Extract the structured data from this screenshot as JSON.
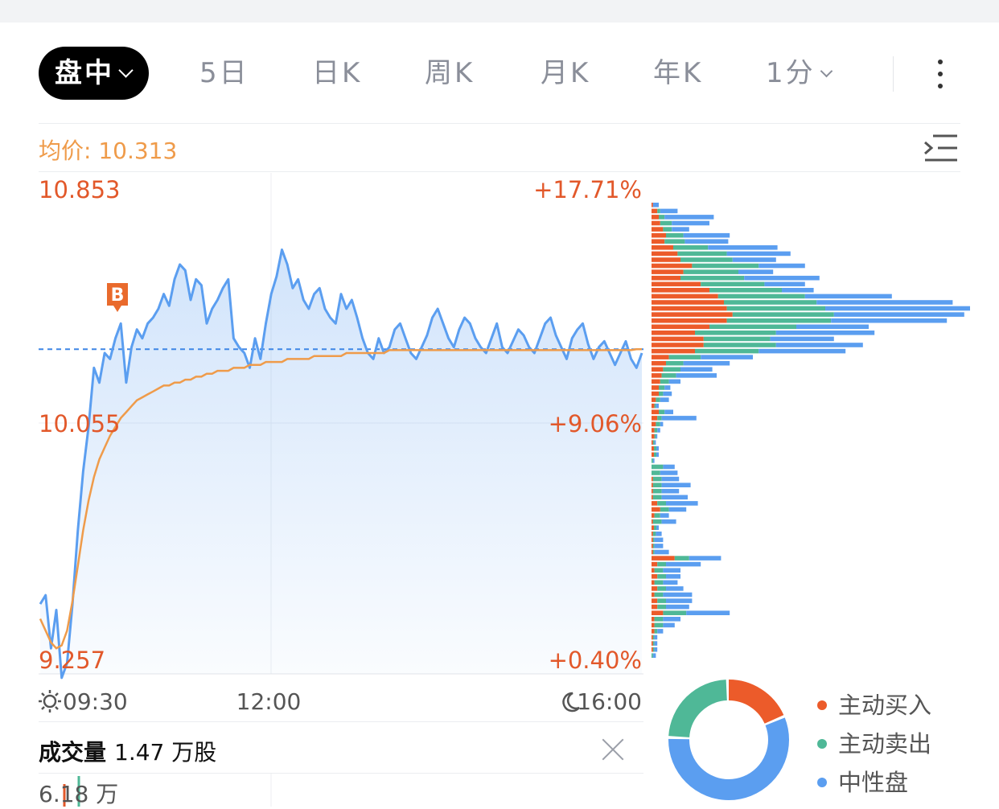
{
  "tabs": [
    {
      "label": "盘中",
      "active": true,
      "dropdown": true
    },
    {
      "label": "5日"
    },
    {
      "label": "日K"
    },
    {
      "label": "周K"
    },
    {
      "label": "月K"
    },
    {
      "label": "年K"
    },
    {
      "label": "1分",
      "dropdown": true
    }
  ],
  "icons": {
    "more": "more-vertical-icon",
    "settings": "list-settings-icon",
    "sun": "sun-icon",
    "moon": "moon-icon",
    "close": "close-icon"
  },
  "avg_price_label": "均价: 10.313",
  "volume": {
    "label": "成交量",
    "value": "1.47 万股",
    "axis_max": "6.18 万"
  },
  "legend": [
    {
      "label": "主动买入",
      "color": "#ec5b2a"
    },
    {
      "label": "主动卖出",
      "color": "#4fb897"
    },
    {
      "label": "中性盘",
      "color": "#5b9ef0"
    }
  ],
  "chart_data": {
    "type": "line",
    "y_labels_left": [
      "10.853",
      "10.055",
      "9.257"
    ],
    "y_labels_right": [
      "+17.71%",
      "+9.06%",
      "+0.40%"
    ],
    "x_labels": [
      "09:30",
      "12:00",
      "16:00"
    ],
    "ylim": [
      9.257,
      10.853
    ],
    "reference_price": 10.313,
    "trade_marker": {
      "label": "B",
      "price": 10.45
    },
    "colors": {
      "price": "#5b9ef0",
      "avg": "#ef9b4a",
      "up": "#e2582a"
    },
    "price_series": [
      9.45,
      9.48,
      9.3,
      9.43,
      9.2,
      9.25,
      9.45,
      9.7,
      9.9,
      10.05,
      10.25,
      10.2,
      10.3,
      10.28,
      10.35,
      10.4,
      10.2,
      10.32,
      10.38,
      10.35,
      10.4,
      10.42,
      10.45,
      10.5,
      10.46,
      10.55,
      10.6,
      10.58,
      10.48,
      10.55,
      10.53,
      10.4,
      10.45,
      10.48,
      10.52,
      10.55,
      10.35,
      10.32,
      10.3,
      10.25,
      10.35,
      10.28,
      10.4,
      10.5,
      10.56,
      10.65,
      10.6,
      10.52,
      10.55,
      10.48,
      10.45,
      10.5,
      10.52,
      10.45,
      10.42,
      10.4,
      10.5,
      10.45,
      10.48,
      10.42,
      10.35,
      10.3,
      10.28,
      10.35,
      10.3,
      10.32,
      10.38,
      10.4,
      10.35,
      10.3,
      10.28,
      10.32,
      10.36,
      10.42,
      10.45,
      10.4,
      10.35,
      10.32,
      10.38,
      10.42,
      10.4,
      10.35,
      10.32,
      10.3,
      10.35,
      10.4,
      10.32,
      10.3,
      10.34,
      10.38,
      10.36,
      10.32,
      10.3,
      10.35,
      10.4,
      10.42,
      10.36,
      10.32,
      10.28,
      10.35,
      10.38,
      10.4,
      10.33,
      10.28,
      10.32,
      10.34,
      10.3,
      10.26,
      10.3,
      10.34,
      10.28,
      10.25,
      10.3
    ],
    "avg_series": [
      9.4,
      9.36,
      9.32,
      9.3,
      9.31,
      9.36,
      9.46,
      9.58,
      9.7,
      9.8,
      9.88,
      9.94,
      9.98,
      10.02,
      10.05,
      10.08,
      10.1,
      10.12,
      10.14,
      10.15,
      10.16,
      10.17,
      10.18,
      10.19,
      10.19,
      10.2,
      10.2,
      10.21,
      10.21,
      10.22,
      10.22,
      10.23,
      10.23,
      10.24,
      10.24,
      10.24,
      10.25,
      10.25,
      10.25,
      10.26,
      10.26,
      10.26,
      10.27,
      10.27,
      10.27,
      10.27,
      10.28,
      10.28,
      10.28,
      10.28,
      10.28,
      10.29,
      10.29,
      10.29,
      10.29,
      10.29,
      10.29,
      10.3,
      10.3,
      10.3,
      10.3,
      10.3,
      10.3,
      10.3,
      10.3,
      10.31,
      10.31,
      10.31,
      10.31,
      10.31,
      10.31,
      10.31,
      10.31,
      10.31,
      10.31,
      10.31,
      10.31,
      10.31,
      10.31,
      10.31,
      10.31,
      10.31,
      10.31,
      10.31,
      10.31,
      10.31,
      10.31,
      10.31,
      10.31,
      10.31,
      10.31,
      10.31,
      10.31,
      10.31,
      10.31,
      10.31,
      10.31,
      10.31,
      10.31,
      10.31,
      10.31,
      10.31,
      10.31,
      10.31,
      10.31,
      10.31,
      10.31,
      10.31,
      10.31,
      10.31,
      10.31,
      10.313,
      10.313
    ],
    "volume_profile": [
      [
        1,
        0,
        4
      ],
      [
        4,
        2,
        12
      ],
      [
        5,
        4,
        34
      ],
      [
        6,
        8,
        26
      ],
      [
        8,
        6,
        12
      ],
      [
        10,
        12,
        32
      ],
      [
        9,
        14,
        30
      ],
      [
        15,
        24,
        48
      ],
      [
        18,
        34,
        44
      ],
      [
        20,
        36,
        30
      ],
      [
        28,
        46,
        32
      ],
      [
        22,
        38,
        24
      ],
      [
        20,
        44,
        52
      ],
      [
        34,
        44,
        28
      ],
      [
        40,
        50,
        22
      ],
      [
        46,
        60,
        60
      ],
      [
        50,
        64,
        94
      ],
      [
        52,
        68,
        100
      ],
      [
        56,
        70,
        90
      ],
      [
        52,
        72,
        80
      ],
      [
        40,
        60,
        50
      ],
      [
        30,
        56,
        68
      ],
      [
        36,
        46,
        44
      ],
      [
        36,
        50,
        60
      ],
      [
        30,
        44,
        60
      ],
      [
        12,
        22,
        36
      ],
      [
        10,
        12,
        32
      ],
      [
        8,
        12,
        22
      ],
      [
        7,
        10,
        28
      ],
      [
        6,
        6,
        8
      ],
      [
        5,
        4,
        4
      ],
      [
        5,
        3,
        6
      ],
      [
        3,
        3,
        6
      ],
      [
        2,
        1,
        2
      ],
      [
        5,
        4,
        6
      ],
      [
        4,
        3,
        24
      ],
      [
        3,
        3,
        2
      ],
      [
        2,
        2,
        2
      ],
      [
        2,
        1,
        1
      ],
      [
        1,
        1,
        1
      ],
      [
        0,
        0,
        0
      ],
      [
        0,
        0,
        0
      ],
      [
        0,
        1,
        1
      ],
      [
        0,
        8,
        8
      ],
      [
        0,
        6,
        12
      ],
      [
        1,
        6,
        12
      ],
      [
        1,
        6,
        20
      ],
      [
        1,
        6,
        12
      ],
      [
        1,
        6,
        18
      ],
      [
        4,
        6,
        22
      ],
      [
        6,
        6,
        12
      ],
      [
        2,
        4,
        6
      ],
      [
        1,
        6,
        10
      ],
      [
        0,
        0,
        0
      ],
      [
        1,
        2,
        4
      ],
      [
        1,
        1,
        6
      ],
      [
        1,
        1,
        6
      ],
      [
        1,
        1,
        10
      ],
      [
        16,
        10,
        22
      ],
      [
        4,
        6,
        24
      ],
      [
        2,
        6,
        12
      ],
      [
        4,
        6,
        10
      ],
      [
        2,
        6,
        10
      ],
      [
        4,
        6,
        12
      ],
      [
        2,
        6,
        20
      ],
      [
        4,
        6,
        18
      ],
      [
        4,
        6,
        16
      ],
      [
        8,
        16,
        30
      ],
      [
        2,
        6,
        12
      ],
      [
        2,
        6,
        8
      ],
      [
        2,
        2,
        4
      ],
      [
        1,
        1,
        2
      ],
      [
        1,
        1,
        2
      ],
      [
        1,
        1,
        2
      ],
      [
        0,
        1,
        2
      ]
    ],
    "donut": {
      "buy": 0.19,
      "sell": 0.24,
      "neutral": 0.57
    }
  }
}
